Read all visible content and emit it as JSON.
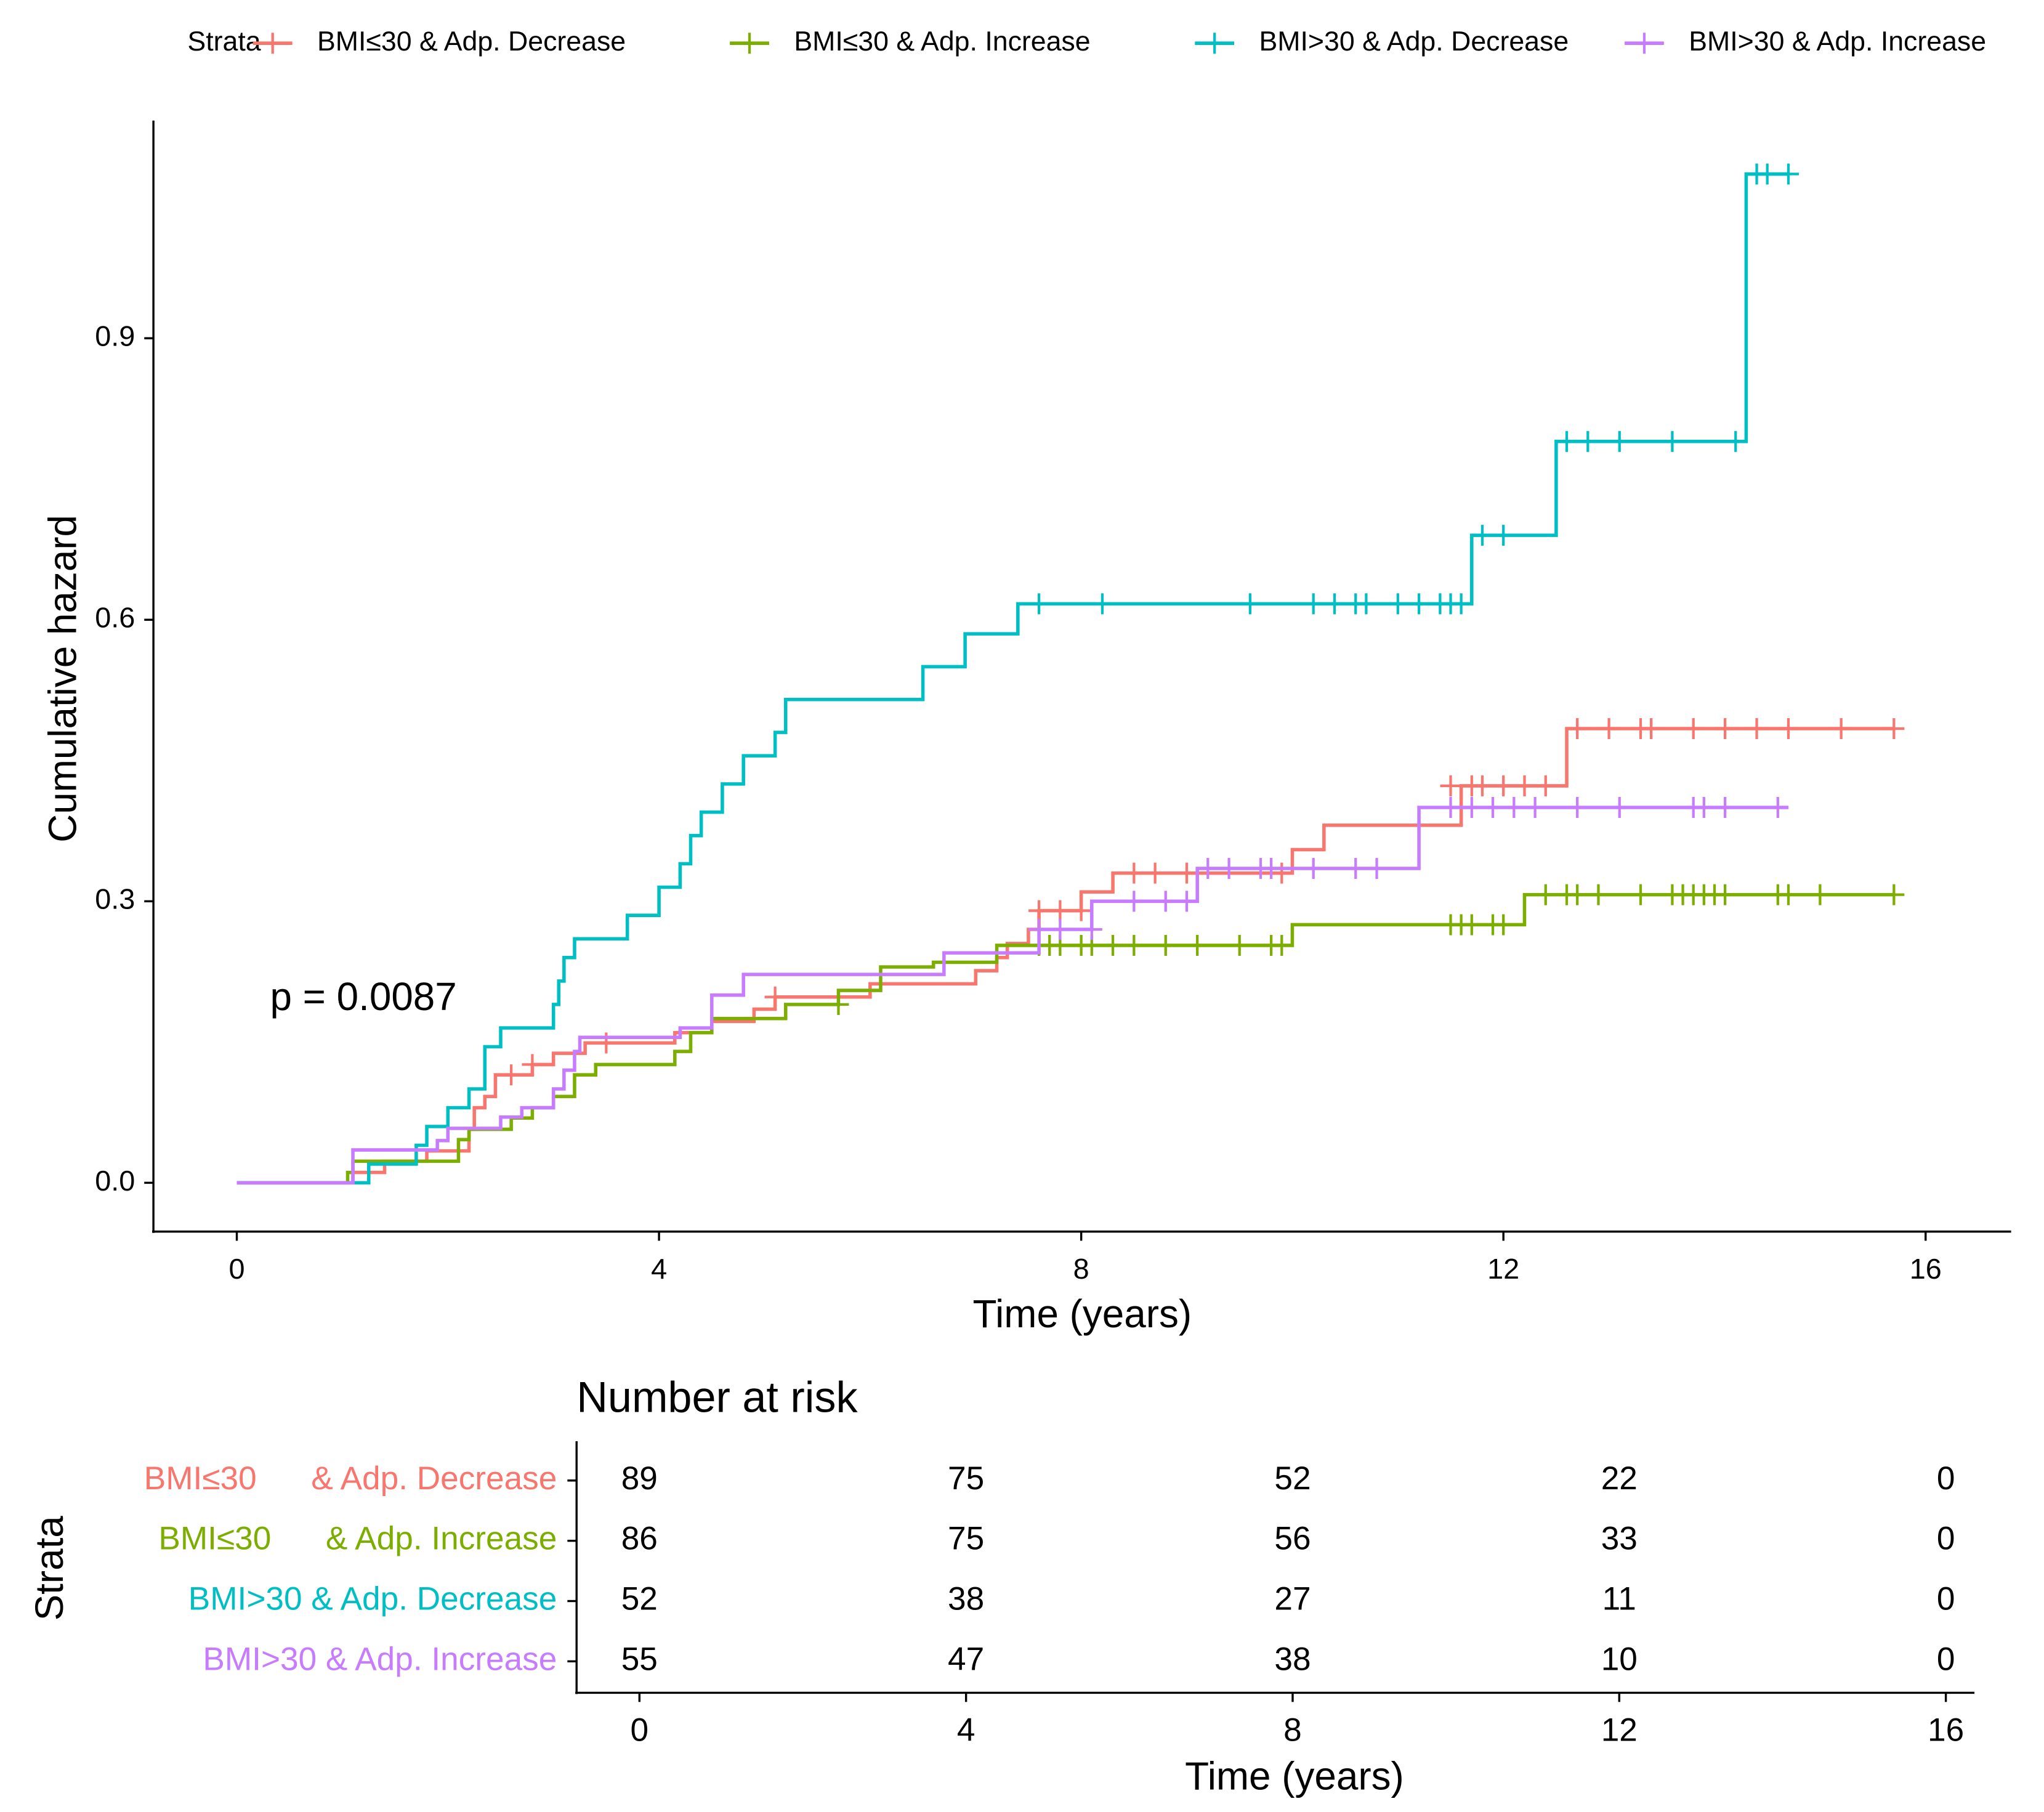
{
  "chart_data": [
    {
      "type": "step",
      "legend_title": "Strata",
      "annotation": "p = 0.0087",
      "x_label": "Time (years)",
      "y_label": "Cumulative hazard",
      "xlim": [
        -0.79,
        16.81
      ],
      "xticks": [
        0,
        4,
        8,
        12,
        16
      ],
      "ylim": [
        -0.052,
        1.132
      ],
      "yticks": [
        {
          "value": 0,
          "label": "0.0"
        },
        0.3,
        0.6,
        0.9
      ],
      "series": [
        {
          "name": "BMI≤30 & Adp. Decrease",
          "color": "#F8766D",
          "x": [
            0,
            1.1,
            1.4,
            1.8,
            2.2,
            2.25,
            2.35,
            2.45,
            2.8,
            3.0,
            3.3,
            4.15,
            4.5,
            4.9,
            5.1,
            6.0,
            7.0,
            7.2,
            7.3,
            7.5,
            7.6,
            8.0,
            8.3,
            10.0,
            10.3,
            11.6,
            12.6,
            15.7
          ],
          "values": [
            0,
            0.011,
            0.023,
            0.034,
            0.057,
            0.08,
            0.092,
            0.115,
            0.126,
            0.138,
            0.149,
            0.16,
            0.172,
            0.185,
            0.198,
            0.212,
            0.226,
            0.24,
            0.255,
            0.27,
            0.29,
            0.31,
            0.33,
            0.355,
            0.381,
            0.423,
            0.484,
            0.484
          ],
          "censor_x": [
            2.6,
            2.8,
            3.5,
            5.1,
            7.6,
            7.8,
            8.0,
            8.5,
            8.7,
            9.0,
            9.9,
            11.5,
            11.7,
            11.8,
            12.0,
            12.2,
            12.4,
            12.7,
            13.0,
            13.3,
            13.4,
            13.8,
            14.1,
            14.4,
            14.7,
            15.2,
            15.7
          ],
          "censor_values": [
            0.115,
            0.126,
            0.149,
            0.198,
            0.29,
            0.29,
            0.29,
            0.33,
            0.33,
            0.33,
            0.33,
            0.423,
            0.423,
            0.423,
            0.423,
            0.423,
            0.423,
            0.484,
            0.484,
            0.484,
            0.484,
            0.484,
            0.484,
            0.484,
            0.484,
            0.484,
            0.484
          ]
        },
        {
          "name": "BMI≤30 & Adp. Increase",
          "color": "#7CAE00",
          "x": [
            0,
            1.05,
            1.1,
            2.1,
            2.2,
            2.6,
            2.8,
            3.0,
            3.2,
            3.4,
            4.15,
            4.3,
            4.5,
            5.2,
            5.7,
            6.1,
            6.6,
            7.2,
            10.0,
            12.2,
            15.7
          ],
          "values": [
            0,
            0.011,
            0.023,
            0.046,
            0.057,
            0.069,
            0.08,
            0.092,
            0.115,
            0.126,
            0.14,
            0.16,
            0.175,
            0.19,
            0.205,
            0.23,
            0.235,
            0.253,
            0.275,
            0.307,
            0.307
          ],
          "censor_x": [
            5.7,
            7.6,
            7.7,
            7.8,
            8.0,
            8.1,
            8.3,
            8.5,
            8.8,
            9.1,
            9.5,
            9.8,
            9.9,
            11.5,
            11.6,
            11.7,
            11.9,
            12.0,
            12.4,
            12.6,
            12.7,
            12.9,
            13.3,
            13.6,
            13.7,
            13.8,
            13.9,
            14.0,
            14.1,
            14.6,
            14.7,
            15.0,
            15.7
          ],
          "censor_values": [
            0.19,
            0.253,
            0.253,
            0.253,
            0.253,
            0.253,
            0.253,
            0.253,
            0.253,
            0.253,
            0.253,
            0.253,
            0.253,
            0.275,
            0.275,
            0.275,
            0.275,
            0.275,
            0.307,
            0.307,
            0.307,
            0.307,
            0.307,
            0.307,
            0.307,
            0.307,
            0.307,
            0.307,
            0.307,
            0.307,
            0.307,
            0.307,
            0.307
          ]
        },
        {
          "name": "BMI>30 & Adp. Decrease",
          "color": "#00BFC4",
          "x": [
            0,
            1.25,
            1.7,
            1.8,
            2.0,
            2.2,
            2.35,
            2.5,
            3.0,
            3.05,
            3.1,
            3.2,
            3.7,
            4.0,
            4.2,
            4.3,
            4.4,
            4.6,
            4.8,
            5.1,
            5.2,
            6.5,
            6.9,
            7.4,
            11.7,
            12.5,
            14.3,
            14.7
          ],
          "values": [
            0,
            0.02,
            0.04,
            0.06,
            0.08,
            0.1,
            0.145,
            0.165,
            0.19,
            0.215,
            0.24,
            0.26,
            0.285,
            0.315,
            0.34,
            0.37,
            0.395,
            0.425,
            0.455,
            0.48,
            0.515,
            0.55,
            0.585,
            0.617,
            0.69,
            0.79,
            1.075,
            1.075
          ],
          "censor_x": [
            7.6,
            8.2,
            9.6,
            10.2,
            10.4,
            10.6,
            10.7,
            11.0,
            11.2,
            11.4,
            11.5,
            11.6,
            11.8,
            12.0,
            12.6,
            12.8,
            13.1,
            13.6,
            14.2,
            14.4,
            14.5,
            14.7
          ],
          "censor_values": [
            0.617,
            0.617,
            0.617,
            0.617,
            0.617,
            0.617,
            0.617,
            0.617,
            0.617,
            0.617,
            0.617,
            0.617,
            0.69,
            0.69,
            0.79,
            0.79,
            0.79,
            0.79,
            0.79,
            1.075,
            1.075,
            1.075
          ]
        },
        {
          "name": "BMI>30 & Adp. Increase",
          "color": "#C77CFF",
          "x": [
            0,
            1.1,
            1.9,
            2.0,
            2.5,
            2.7,
            3.0,
            3.1,
            3.2,
            3.25,
            4.2,
            4.5,
            4.8,
            6.7,
            7.6,
            8.1,
            9.1,
            11.2,
            14.7
          ],
          "values": [
            0,
            0.035,
            0.045,
            0.058,
            0.07,
            0.08,
            0.1,
            0.12,
            0.14,
            0.155,
            0.165,
            0.2,
            0.222,
            0.245,
            0.27,
            0.3,
            0.335,
            0.4,
            0.4
          ],
          "censor_x": [
            7.6,
            7.8,
            8.1,
            8.5,
            8.8,
            9.0,
            9.2,
            9.4,
            9.7,
            9.8,
            10.2,
            10.6,
            10.8,
            11.5,
            11.7,
            11.9,
            12.1,
            12.3,
            12.7,
            13.1,
            13.8,
            13.9,
            14.1,
            14.6
          ],
          "censor_values": [
            0.27,
            0.27,
            0.27,
            0.3,
            0.3,
            0.3,
            0.335,
            0.335,
            0.335,
            0.335,
            0.335,
            0.335,
            0.335,
            0.4,
            0.4,
            0.4,
            0.4,
            0.4,
            0.4,
            0.4,
            0.4,
            0.4,
            0.4,
            0.4
          ]
        }
      ]
    },
    {
      "type": "table",
      "title": "Number at risk",
      "y_label": "Strata",
      "x_label": "Time (years)",
      "xlim": [
        -0.77,
        16.35
      ],
      "xticks": [
        0,
        4,
        8,
        12,
        16
      ],
      "series": [
        {
          "name": "BMI≤30      & Adp. Decrease",
          "color": "#F8766D",
          "x": [
            0,
            4,
            8,
            12,
            16
          ],
          "values": [
            89,
            75,
            52,
            22,
            0
          ]
        },
        {
          "name": "BMI≤30      & Adp. Increase",
          "color": "#7CAE00",
          "x": [
            0,
            4,
            8,
            12,
            16
          ],
          "values": [
            86,
            75,
            56,
            33,
            0
          ]
        },
        {
          "name": "BMI>30 & Adp. Decrease",
          "color": "#00BFC4",
          "x": [
            0,
            4,
            8,
            12,
            16
          ],
          "values": [
            52,
            38,
            27,
            11,
            0
          ]
        },
        {
          "name": "BMI>30 & Adp. Increase",
          "color": "#C77CFF",
          "x": [
            0,
            4,
            8,
            12,
            16
          ],
          "values": [
            55,
            47,
            38,
            10,
            0
          ]
        }
      ]
    }
  ]
}
